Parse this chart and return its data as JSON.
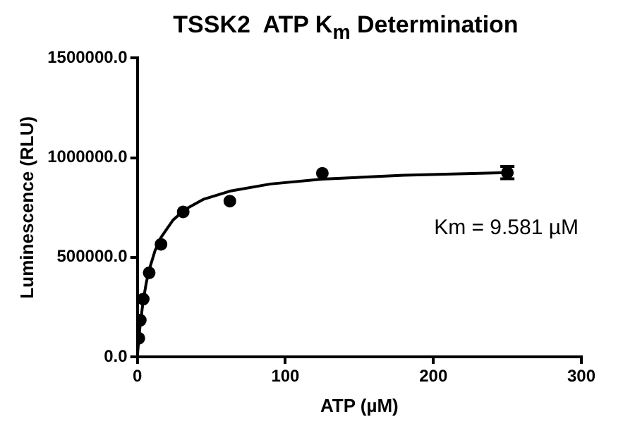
{
  "chart_data": {
    "type": "scatter",
    "title": "TSSK2  ATP K$_{m}$ Determination",
    "xlabel": "ATP (µM)",
    "ylabel": "Luminescence (RLU)",
    "xlim": [
      0,
      300
    ],
    "xticks": [
      0,
      100,
      200,
      300
    ],
    "ylim": [
      0,
      1500000
    ],
    "yticks": [
      {
        "value": 0,
        "label": "0.0"
      },
      {
        "value": 500000,
        "label": "500000.0"
      },
      {
        "value": 1000000,
        "label": "1000000.0"
      },
      {
        "value": 1500000,
        "label": "1500000.0"
      }
    ],
    "grid": false,
    "legend": false,
    "marker": "circle",
    "annotations": [
      "Km = 9.581 µM"
    ],
    "series": [
      {
        "color": "#000000",
        "x": [
          1,
          2,
          4,
          8,
          16,
          31,
          62.5,
          125,
          250
        ],
        "values": [
          93000,
          184000,
          290000,
          422000,
          565000,
          728000,
          782000,
          922000,
          925000
        ],
        "errors": [
          null,
          null,
          null,
          null,
          null,
          null,
          null,
          null,
          31000
        ]
      },
      {
        "type": "line",
        "color": "#000000",
        "marker": "none",
        "line_style": "solid",
        "x": [
          0,
          1,
          2,
          4,
          6,
          8,
          12,
          16,
          24,
          32,
          45,
          62.5,
          90,
          125,
          180,
          250
        ],
        "values": [
          0,
          91000,
          166000,
          283000,
          370000,
          437000,
          534000,
          600000,
          686000,
          739000,
          792000,
          832000,
          868000,
          892000,
          912000,
          925000
        ]
      }
    ]
  }
}
